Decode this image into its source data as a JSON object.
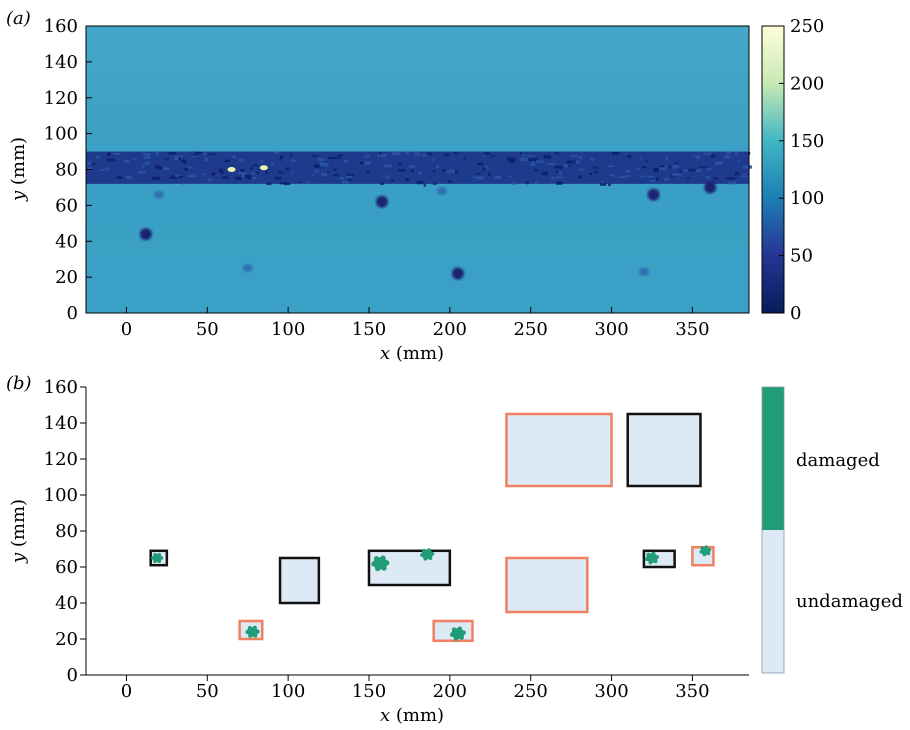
{
  "chart_data": [
    {
      "type": "heatmap",
      "panel_label": "(a)",
      "xlabel_var": "x",
      "xlabel_unit": " (mm)",
      "ylabel_var": "y",
      "ylabel_unit": " (mm)",
      "xlim": [
        -25,
        385
      ],
      "ylim": [
        0,
        160
      ],
      "xticks": [
        0,
        50,
        100,
        150,
        200,
        250,
        300,
        350
      ],
      "yticks": [
        0,
        20,
        40,
        60,
        80,
        100,
        120,
        140,
        160
      ],
      "colorbar": {
        "range": [
          0,
          250
        ],
        "ticks": [
          0,
          50,
          100,
          150,
          200,
          250
        ],
        "colormap": "YlGnBu (dark navy to pale yellow)"
      },
      "background_value": 115,
      "bands": [
        {
          "y_range": [
            72,
            90
          ],
          "value": 35,
          "note": "dark damaged strip"
        }
      ],
      "spots": [
        {
          "x": 158,
          "y": 62,
          "value": 25
        },
        {
          "x": 205,
          "y": 22,
          "value": 25
        },
        {
          "x": 326,
          "y": 66,
          "value": 25
        },
        {
          "x": 361,
          "y": 70,
          "value": 25
        },
        {
          "x": 20,
          "y": 66,
          "value": 80
        },
        {
          "x": 195,
          "y": 68,
          "value": 80
        },
        {
          "x": 12,
          "y": 44,
          "value": 20
        },
        {
          "x": 75,
          "y": 25,
          "value": 95
        },
        {
          "x": 320,
          "y": 23,
          "value": 95
        }
      ],
      "bright_spots": [
        {
          "x": 65,
          "y": 80,
          "value": 200
        },
        {
          "x": 85,
          "y": 81,
          "value": 220
        }
      ],
      "colors": {
        "background": "#3398bf",
        "band": "#1e3a8c",
        "spot": "#1a2372",
        "bright": "#edf8b0"
      }
    },
    {
      "type": "scatter",
      "panel_label": "(b)",
      "xlabel_var": "x",
      "xlabel_unit": " (mm)",
      "ylabel_var": "y",
      "ylabel_unit": " (mm)",
      "xlim": [
        -25,
        385
      ],
      "ylim": [
        0,
        160
      ],
      "xticks": [
        0,
        50,
        100,
        150,
        200,
        250,
        300,
        350
      ],
      "yticks": [
        0,
        20,
        40,
        60,
        80,
        100,
        120,
        140,
        160
      ],
      "colorbar_labels": {
        "top": "damaged",
        "bottom": "undamaged"
      },
      "rectangles": [
        {
          "x": [
            15,
            25
          ],
          "y": [
            61,
            69
          ],
          "edge": "black"
        },
        {
          "x": [
            95,
            119
          ],
          "y": [
            40,
            65
          ],
          "edge": "black"
        },
        {
          "x": [
            150,
            200
          ],
          "y": [
            50,
            69
          ],
          "edge": "black"
        },
        {
          "x": [
            310,
            355
          ],
          "y": [
            105,
            145
          ],
          "edge": "black"
        },
        {
          "x": [
            320,
            339
          ],
          "y": [
            60,
            69
          ],
          "edge": "black"
        },
        {
          "x": [
            70,
            84
          ],
          "y": [
            20,
            30
          ],
          "edge": "orange"
        },
        {
          "x": [
            190,
            214
          ],
          "y": [
            19,
            30
          ],
          "edge": "orange"
        },
        {
          "x": [
            235,
            285
          ],
          "y": [
            35,
            65
          ],
          "edge": "orange"
        },
        {
          "x": [
            235,
            300
          ],
          "y": [
            105,
            145
          ],
          "edge": "orange"
        },
        {
          "x": [
            350,
            363
          ],
          "y": [
            61,
            71
          ],
          "edge": "orange"
        }
      ],
      "damage_blobs": [
        {
          "x": 19,
          "y": 65,
          "r": 3
        },
        {
          "x": 78,
          "y": 24,
          "r": 3.5
        },
        {
          "x": 157,
          "y": 62,
          "r": 4.5
        },
        {
          "x": 186,
          "y": 67,
          "r": 3.5
        },
        {
          "x": 205,
          "y": 23,
          "r": 4
        },
        {
          "x": 325,
          "y": 65,
          "r": 3.5
        },
        {
          "x": 358,
          "y": 69,
          "r": 3
        }
      ],
      "colors": {
        "damaged": "#229c77",
        "undamaged": "#dde9f5",
        "black_edge": "#111111",
        "orange_edge": "#f08060"
      }
    }
  ]
}
